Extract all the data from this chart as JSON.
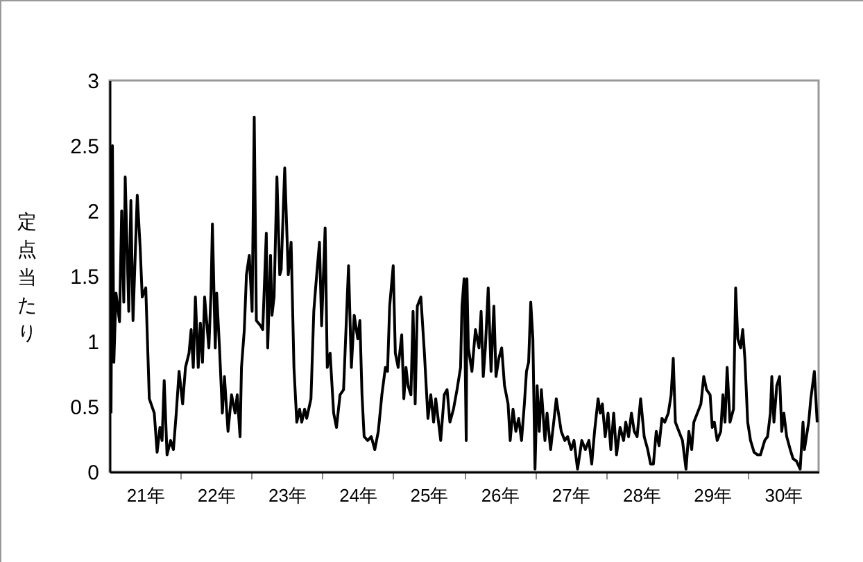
{
  "chart_data": {
    "type": "line",
    "ylabel": "定点当たり",
    "x": [
      21.02,
      21.04,
      21.06,
      21.09,
      21.14,
      21.17,
      21.2,
      21.22,
      21.27,
      21.3,
      21.33,
      21.39,
      21.43,
      21.46,
      21.51,
      21.56,
      21.63,
      21.67,
      21.71,
      21.74,
      21.77,
      21.81,
      21.86,
      21.9,
      21.94,
      21.98,
      22.03,
      22.07,
      22.12,
      22.15,
      22.18,
      22.21,
      22.25,
      22.28,
      22.31,
      22.34,
      22.4,
      22.43,
      22.45,
      22.49,
      22.51,
      22.55,
      22.59,
      22.62,
      22.67,
      22.72,
      22.77,
      22.8,
      22.84,
      22.86,
      22.9,
      22.93,
      22.97,
      23.01,
      23.04,
      23.07,
      23.13,
      23.16,
      23.21,
      23.23,
      23.27,
      23.29,
      23.32,
      23.36,
      23.4,
      23.42,
      23.47,
      23.52,
      23.56,
      23.6,
      23.64,
      23.68,
      23.71,
      23.75,
      23.78,
      23.84,
      23.88,
      23.91,
      23.96,
      23.99,
      24.04,
      24.07,
      24.11,
      24.16,
      24.2,
      24.25,
      24.3,
      24.37,
      24.41,
      24.45,
      24.5,
      24.53,
      24.56,
      24.59,
      24.64,
      24.69,
      24.74,
      24.79,
      24.84,
      24.89,
      24.92,
      24.95,
      25.0,
      25.03,
      25.07,
      25.12,
      25.15,
      25.18,
      25.21,
      25.25,
      25.28,
      25.31,
      25.34,
      25.39,
      25.44,
      25.49,
      25.53,
      25.57,
      25.6,
      25.67,
      25.72,
      25.76,
      25.8,
      25.85,
      25.9,
      25.95,
      25.97,
      26.0,
      26.03,
      26.04,
      26.06,
      26.11,
      26.16,
      26.21,
      26.24,
      26.27,
      26.3,
      26.34,
      26.38,
      26.42,
      26.45,
      26.49,
      26.53,
      26.57,
      26.62,
      26.65,
      26.69,
      26.73,
      26.77,
      26.81,
      26.85,
      26.88,
      26.91,
      26.94,
      26.97,
      27.0,
      27.03,
      27.06,
      27.09,
      27.14,
      27.17,
      27.22,
      27.27,
      27.3,
      27.37,
      27.42,
      27.46,
      27.51,
      27.55,
      27.6,
      27.66,
      27.71,
      27.76,
      27.8,
      27.84,
      27.89,
      27.92,
      27.95,
      27.99,
      28.03,
      28.07,
      28.11,
      28.15,
      28.2,
      28.25,
      28.28,
      28.32,
      28.36,
      28.4,
      28.44,
      28.49,
      28.54,
      28.59,
      28.63,
      28.67,
      28.71,
      28.75,
      28.79,
      28.83,
      28.88,
      28.92,
      28.95,
      28.98,
      29.03,
      29.08,
      29.13,
      29.17,
      29.21,
      29.24,
      29.29,
      29.34,
      29.38,
      29.42,
      29.47,
      29.5,
      29.53,
      29.57,
      29.62,
      29.65,
      29.68,
      29.71,
      29.75,
      29.8,
      29.83,
      29.86,
      29.9,
      29.93,
      29.96,
      30.0,
      30.04,
      30.09,
      30.14,
      30.18,
      30.24,
      30.28,
      30.32,
      30.34,
      30.37,
      30.41,
      30.45,
      30.48,
      30.51,
      30.55,
      30.6,
      30.64,
      30.69,
      30.74,
      30.78,
      30.8,
      30.86,
      30.89,
      30.94,
      30.98
    ],
    "series": [
      {
        "color": "#000000",
        "values": [
          0.45,
          2.5,
          0.84,
          1.37,
          1.15,
          2.0,
          1.3,
          2.26,
          1.23,
          2.08,
          1.16,
          2.12,
          1.73,
          1.34,
          1.41,
          0.56,
          0.45,
          0.15,
          0.34,
          0.24,
          0.7,
          0.13,
          0.24,
          0.17,
          0.45,
          0.77,
          0.52,
          0.8,
          0.91,
          1.09,
          0.8,
          1.34,
          0.8,
          1.14,
          0.84,
          1.34,
          0.95,
          1.37,
          1.9,
          0.95,
          1.37,
          0.95,
          0.45,
          0.73,
          0.31,
          0.59,
          0.45,
          0.59,
          0.27,
          0.8,
          1.09,
          1.51,
          1.66,
          1.23,
          2.72,
          1.16,
          1.12,
          1.09,
          1.83,
          0.95,
          1.66,
          1.2,
          1.34,
          2.26,
          1.51,
          1.55,
          2.33,
          1.51,
          1.76,
          0.8,
          0.38,
          0.48,
          0.38,
          0.48,
          0.41,
          0.56,
          1.23,
          1.44,
          1.76,
          1.12,
          1.87,
          0.8,
          0.91,
          0.45,
          0.34,
          0.59,
          0.63,
          1.58,
          0.8,
          1.2,
          1.02,
          1.16,
          0.59,
          0.27,
          0.24,
          0.27,
          0.17,
          0.31,
          0.59,
          0.8,
          0.77,
          1.27,
          1.58,
          0.91,
          0.8,
          1.05,
          0.56,
          0.8,
          0.66,
          0.59,
          1.23,
          0.52,
          1.27,
          1.34,
          0.91,
          0.41,
          0.59,
          0.38,
          0.56,
          0.24,
          0.59,
          0.63,
          0.38,
          0.48,
          0.63,
          0.8,
          1.27,
          1.48,
          0.24,
          1.48,
          0.95,
          0.77,
          1.09,
          0.95,
          1.23,
          0.73,
          0.95,
          1.41,
          0.77,
          1.27,
          0.73,
          0.87,
          0.95,
          0.66,
          0.52,
          0.24,
          0.48,
          0.31,
          0.41,
          0.24,
          0.52,
          0.77,
          0.84,
          1.3,
          1.02,
          0.02,
          0.66,
          0.31,
          0.63,
          0.24,
          0.45,
          0.17,
          0.41,
          0.56,
          0.31,
          0.24,
          0.27,
          0.17,
          0.24,
          0.02,
          0.24,
          0.17,
          0.24,
          0.06,
          0.31,
          0.56,
          0.45,
          0.52,
          0.27,
          0.45,
          0.17,
          0.45,
          0.13,
          0.34,
          0.24,
          0.38,
          0.27,
          0.45,
          0.31,
          0.27,
          0.56,
          0.27,
          0.17,
          0.06,
          0.06,
          0.31,
          0.2,
          0.41,
          0.38,
          0.45,
          0.59,
          0.87,
          0.38,
          0.31,
          0.24,
          0.02,
          0.31,
          0.17,
          0.38,
          0.45,
          0.52,
          0.73,
          0.63,
          0.59,
          0.34,
          0.38,
          0.24,
          0.31,
          0.59,
          0.38,
          0.8,
          0.38,
          0.48,
          1.41,
          1.02,
          0.95,
          1.09,
          0.87,
          0.38,
          0.24,
          0.15,
          0.13,
          0.13,
          0.24,
          0.27,
          0.45,
          0.73,
          0.38,
          0.66,
          0.73,
          0.31,
          0.45,
          0.27,
          0.17,
          0.1,
          0.08,
          0.02,
          0.38,
          0.17,
          0.38,
          0.56,
          0.77,
          0.38
        ]
      }
    ],
    "xlim": [
      21,
      31
    ],
    "xticks": [
      {
        "value": 22,
        "label": null
      },
      {
        "value": 23,
        "label": null
      },
      {
        "value": 24,
        "label": null
      },
      {
        "value": 25,
        "label": null
      },
      {
        "value": 26,
        "label": null
      },
      {
        "value": 27,
        "label": null
      },
      {
        "value": 28,
        "label": null
      },
      {
        "value": 29,
        "label": null
      },
      {
        "value": 30,
        "label": null
      },
      {
        "value": 21.5,
        "label": "21年"
      },
      {
        "value": 22.5,
        "label": "22年"
      },
      {
        "value": 23.5,
        "label": "23年"
      },
      {
        "value": 24.5,
        "label": "24年"
      },
      {
        "value": 25.5,
        "label": "25年"
      },
      {
        "value": 26.5,
        "label": "26年"
      },
      {
        "value": 27.5,
        "label": "27年"
      },
      {
        "value": 28.5,
        "label": "28年"
      },
      {
        "value": 29.5,
        "label": "29年"
      },
      {
        "value": 30.5,
        "label": "30年"
      }
    ],
    "ylim": [
      0,
      3
    ],
    "yticks": [
      0,
      0.5,
      1,
      1.5,
      2,
      2.5,
      3
    ],
    "grid": false,
    "line_style": "solid",
    "marker": "none"
  }
}
